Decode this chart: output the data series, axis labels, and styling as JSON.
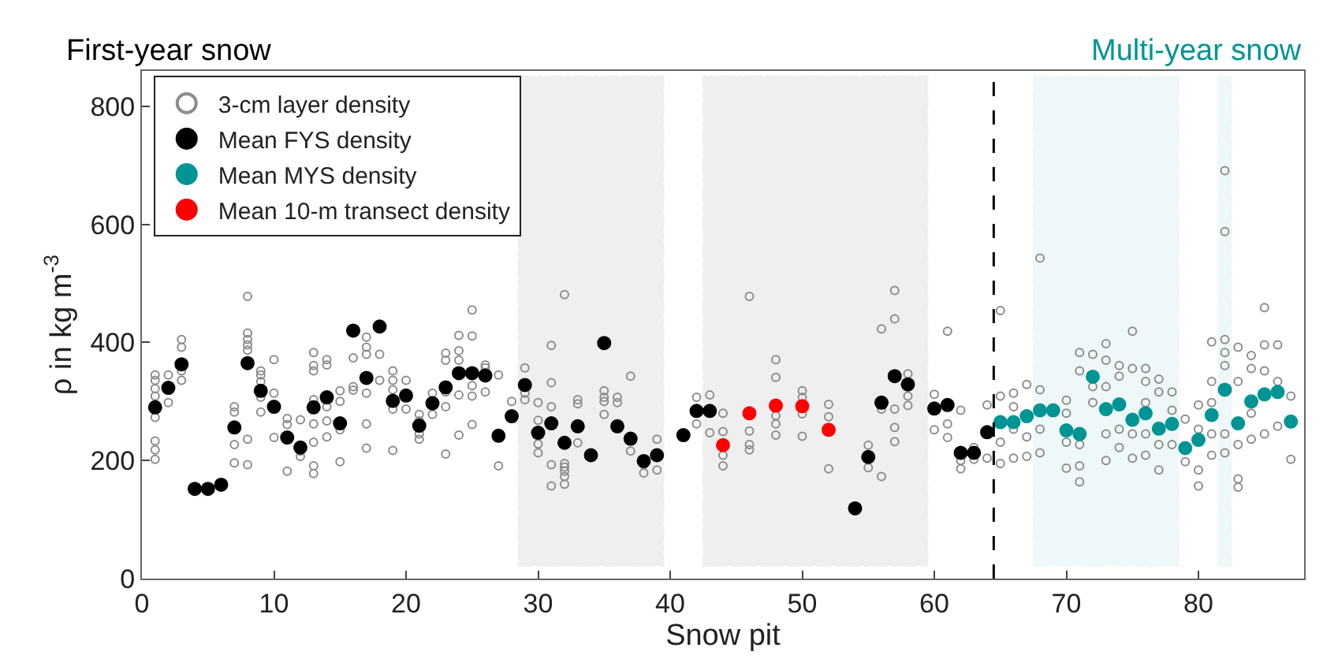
{
  "chart_data": {
    "type": "scatter",
    "xlabel": "Snow pit",
    "ylabel": "ρ in kg m$^{-3}$",
    "annotations": [
      "First-year snow",
      "Multi-year snow"
    ],
    "xlim": [
      0,
      88
    ],
    "xticks": [
      0,
      10,
      20,
      30,
      40,
      50,
      60,
      70,
      80
    ],
    "ylim": [
      0,
      860
    ],
    "yticks": [
      0,
      200,
      400,
      600,
      800
    ],
    "grid": false,
    "legend": "top left",
    "ref_lines": [
      {
        "axis": "x",
        "value": 64.5,
        "label": null,
        "color": "#000000",
        "line_style": "dashed"
      }
    ],
    "bands": [
      {
        "axis": "x",
        "from": 28.5,
        "to": 39.5,
        "label": null,
        "color": "#000000"
      },
      {
        "axis": "x",
        "from": 42.5,
        "to": 59.5,
        "label": null,
        "color": "#000000"
      },
      {
        "axis": "x",
        "from": 67.5,
        "to": 78.5,
        "label": null,
        "color": "#009494"
      },
      {
        "axis": "x",
        "from": 81.5,
        "to": 82.5,
        "label": null,
        "color": "#009494"
      }
    ],
    "series": [
      {
        "name": "3-cm layer density",
        "color": "#8c8c8c",
        "marker": "circle-open",
        "x": [
          1,
          1,
          1,
          1,
          1,
          1,
          1,
          1,
          2,
          2,
          3,
          3,
          3,
          3,
          7,
          7,
          7,
          7,
          8,
          8,
          8,
          8,
          8,
          8,
          8,
          9,
          9,
          9,
          9,
          9,
          10,
          10,
          10,
          11,
          11,
          11,
          12,
          12,
          12,
          13,
          13,
          13,
          13,
          13,
          13,
          13,
          13,
          14,
          14,
          14,
          14,
          14,
          15,
          15,
          15,
          15,
          16,
          16,
          16,
          17,
          17,
          17,
          17,
          17,
          17,
          18,
          18,
          19,
          19,
          19,
          19,
          19,
          20,
          20,
          21,
          21,
          21,
          21,
          22,
          22,
          23,
          23,
          23,
          23,
          23,
          24,
          24,
          24,
          24,
          24,
          25,
          25,
          25,
          25,
          25,
          26,
          26,
          26,
          27,
          27,
          28,
          29,
          29,
          29,
          30,
          30,
          30,
          30,
          31,
          31,
          31,
          31,
          31,
          32,
          32,
          32,
          32,
          32,
          32,
          33,
          33,
          33,
          35,
          35,
          35,
          35,
          36,
          36,
          37,
          37,
          38,
          38,
          39,
          39,
          42,
          42,
          43,
          43,
          44,
          44,
          44,
          44,
          46,
          46,
          46,
          46,
          48,
          48,
          48,
          48,
          48,
          50,
          50,
          50,
          50,
          52,
          52,
          52,
          55,
          55,
          56,
          56,
          56,
          57,
          57,
          57,
          57,
          57,
          58,
          58,
          58,
          60,
          60,
          61,
          61,
          61,
          62,
          62,
          62,
          63,
          63,
          64,
          64,
          65,
          65,
          65,
          65,
          66,
          66,
          66,
          66,
          67,
          67,
          67,
          68,
          68,
          68,
          68,
          70,
          70,
          70,
          70,
          71,
          71,
          71,
          71,
          71,
          72,
          72,
          72,
          73,
          73,
          73,
          73,
          73,
          74,
          74,
          74,
          74,
          75,
          75,
          75,
          75,
          76,
          76,
          76,
          76,
          76,
          77,
          77,
          77,
          77,
          78,
          78,
          78,
          79,
          79,
          80,
          80,
          80,
          80,
          81,
          81,
          81,
          81,
          81,
          82,
          82,
          82,
          82,
          82,
          82,
          82,
          83,
          83,
          83,
          83,
          83,
          84,
          84,
          84,
          84,
          85,
          85,
          85,
          85,
          86,
          86,
          86,
          87,
          87
        ],
        "values": [
          345,
          336,
          322,
          309,
          273,
          233,
          218,
          202,
          345,
          298,
          405,
          392,
          352,
          336,
          291,
          282,
          227,
          196,
          478,
          416,
          405,
          396,
          387,
          236,
          193,
          352,
          345,
          334,
          307,
          282,
          371,
          314,
          239,
          271,
          261,
          182,
          269,
          216,
          207,
          383,
          361,
          352,
          303,
          262,
          231,
          191,
          178,
          371,
          362,
          291,
          267,
          240,
          318,
          300,
          252,
          198,
          374,
          325,
          319,
          409,
          392,
          380,
          314,
          262,
          221,
          380,
          336,
          352,
          336,
          320,
          287,
          217,
          336,
          287,
          278,
          267,
          245,
          236,
          314,
          278,
          382,
          370,
          316,
          291,
          211,
          412,
          386,
          370,
          311,
          243,
          455,
          411,
          327,
          309,
          261,
          362,
          357,
          316,
          345,
          191,
          300,
          357,
          314,
          303,
          298,
          268,
          228,
          213,
          395,
          332,
          291,
          193,
          157,
          481,
          195,
          189,
          182,
          173,
          160,
          303,
          296,
          230,
          318,
          307,
          300,
          278,
          307,
          298,
          343,
          216,
          193,
          179,
          236,
          184,
          307,
          262,
          311,
          247,
          280,
          249,
          209,
          191,
          478,
          250,
          227,
          218,
          371,
          341,
          276,
          262,
          243,
          318,
          307,
          279,
          241,
          295,
          274,
          186,
          226,
          188,
          423,
          287,
          173,
          488,
          440,
          287,
          256,
          232,
          347,
          309,
          293,
          312,
          252,
          419,
          262,
          239,
          285,
          200,
          186,
          222,
          202,
          294,
          204,
          454,
          309,
          231,
          195,
          314,
          291,
          253,
          204,
          329,
          240,
          207,
          543,
          320,
          253,
          213,
          302,
          280,
          231,
          187,
          383,
          352,
          227,
          191,
          164,
          380,
          325,
          298,
          398,
          370,
          325,
          245,
          200,
          361,
          343,
          253,
          222,
          419,
          356,
          245,
          204,
          356,
          334,
          298,
          245,
          209,
          338,
          316,
          227,
          184,
          316,
          285,
          227,
          270,
          198,
          294,
          253,
          184,
          157,
          401,
          334,
          298,
          245,
          209,
          691,
          588,
          405,
          383,
          361,
          245,
          213,
          392,
          334,
          227,
          169,
          155,
          378,
          356,
          280,
          236,
          459,
          396,
          352,
          245,
          396,
          334,
          258,
          309,
          202
        ]
      },
      {
        "name": "Mean FYS density",
        "color": "#000000",
        "marker": "circle",
        "x": [
          1,
          2,
          3,
          4,
          5,
          6,
          7,
          8,
          9,
          10,
          11,
          12,
          13,
          14,
          15,
          16,
          17,
          18,
          19,
          20,
          21,
          22,
          23,
          24,
          25,
          26,
          27,
          28,
          29,
          30,
          31,
          32,
          33,
          34,
          35,
          36,
          37,
          38,
          39,
          41,
          42,
          43,
          54,
          55,
          56,
          57,
          58,
          60,
          61,
          62,
          63,
          64
        ],
        "values": [
          290,
          323,
          363,
          152,
          152,
          159,
          256,
          365,
          318,
          291,
          239,
          222,
          290,
          307,
          263,
          420,
          340,
          427,
          301,
          310,
          259,
          297,
          324,
          348,
          348,
          344,
          242,
          275,
          328,
          247,
          263,
          230,
          258,
          209,
          399,
          258,
          237,
          199,
          209,
          243,
          284,
          284,
          119,
          206,
          298,
          343,
          329,
          288,
          294,
          213,
          213,
          248
        ]
      },
      {
        "name": "Mean MYS density",
        "color": "#009494",
        "marker": "circle",
        "x": [
          65,
          66,
          67,
          68,
          69,
          70,
          71,
          72,
          73,
          74,
          75,
          76,
          77,
          78,
          79,
          80,
          81,
          82,
          83,
          84,
          85,
          86,
          87
        ],
        "values": [
          265,
          265,
          275,
          285,
          285,
          251,
          245,
          342,
          287,
          295,
          269,
          280,
          254,
          262,
          221,
          235,
          277,
          320,
          263,
          300,
          312,
          316,
          266
        ]
      },
      {
        "name": "Mean 10-m transect density",
        "color": "#ff0000",
        "marker": "circle",
        "x": [
          44,
          46,
          48,
          50,
          52
        ],
        "values": [
          226,
          280,
          293,
          292,
          252
        ]
      }
    ]
  }
}
